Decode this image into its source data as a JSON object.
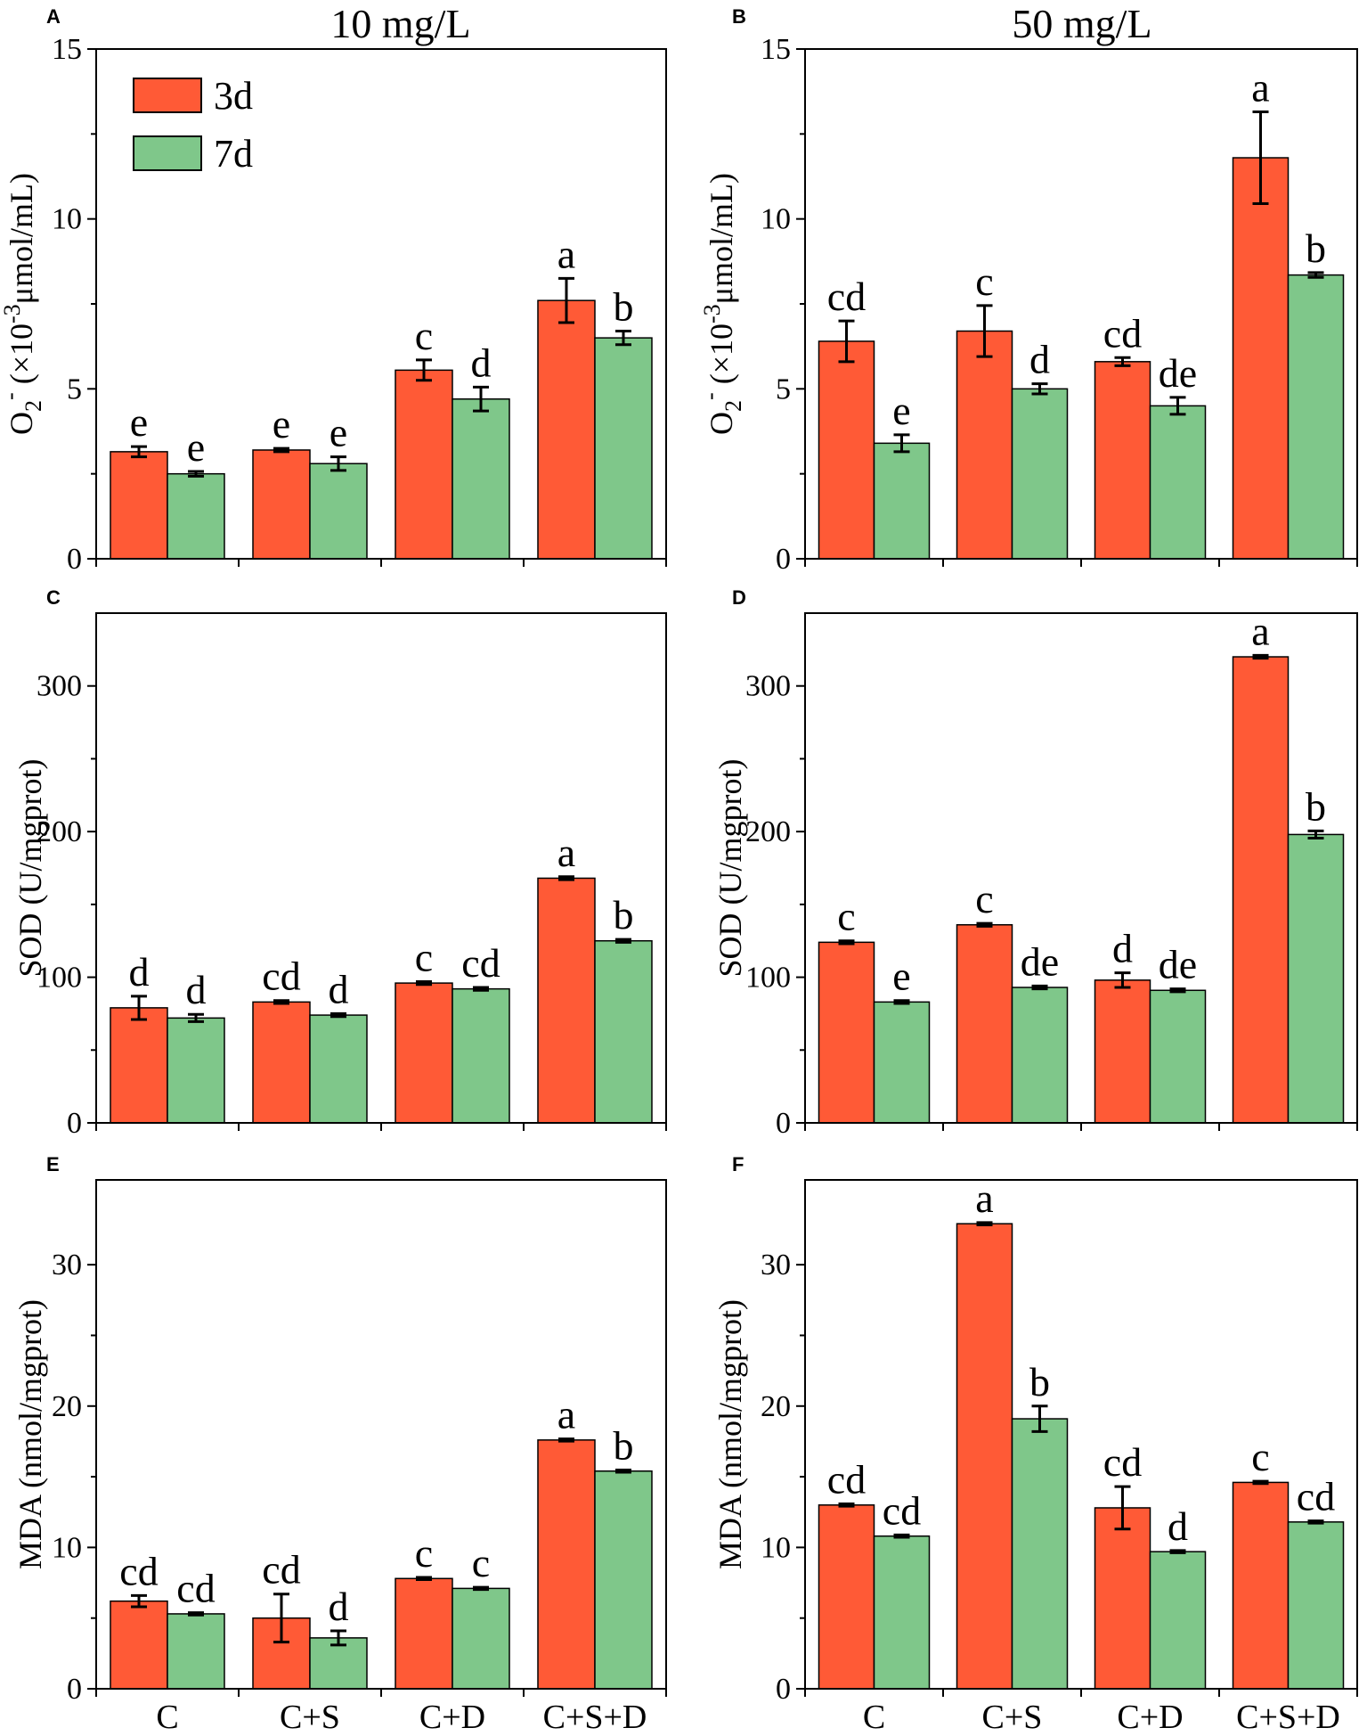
{
  "colors": {
    "d3": "#FF5A36",
    "d7": "#7FC78A",
    "axis": "#000000"
  },
  "column_titles": [
    "10 mg/L",
    "50 mg/L"
  ],
  "legend": [
    {
      "label": "3d",
      "color_key": "d3"
    },
    {
      "label": "7d",
      "color_key": "d7"
    }
  ],
  "chart_data": [
    {
      "id": "A",
      "panel_label": "A",
      "type": "bar",
      "title": "10 mg/L",
      "ylabel": "O₂⁻ (×10⁻³μmol/mL)",
      "ylabel_parts": [
        "O",
        "2",
        "-",
        " (×10",
        "-3",
        "μmol/mL)"
      ],
      "ylim": [
        0,
        15
      ],
      "yticks": [
        "0",
        "5",
        "10",
        "15"
      ],
      "categories": [
        "C",
        "C+S",
        "C+D",
        "C+S+D"
      ],
      "show_xticklabels": false,
      "series": [
        {
          "name": "3d",
          "values": [
            3.15,
            3.2,
            5.55,
            7.6
          ],
          "errors": [
            0.15,
            0.05,
            0.3,
            0.65
          ],
          "letters": [
            "e",
            "e",
            "c",
            "a"
          ]
        },
        {
          "name": "7d",
          "values": [
            2.5,
            2.8,
            4.7,
            6.5
          ],
          "errors": [
            0.07,
            0.2,
            0.35,
            0.2
          ],
          "letters": [
            "e",
            "e",
            "d",
            "b"
          ]
        }
      ]
    },
    {
      "id": "B",
      "panel_label": "B",
      "type": "bar",
      "title": "50 mg/L",
      "ylabel": "O₂⁻ (×10⁻³μmol/mL)",
      "ylabel_parts": [
        "O",
        "2",
        "-",
        " (×10",
        "-3",
        "μmol/mL)"
      ],
      "ylim": [
        0,
        15
      ],
      "yticks": [
        "0",
        "5",
        "10",
        "15"
      ],
      "categories": [
        "C",
        "C+S",
        "C+D",
        "C+S+D"
      ],
      "show_xticklabels": false,
      "series": [
        {
          "name": "3d",
          "values": [
            6.4,
            6.7,
            5.8,
            11.8
          ],
          "errors": [
            0.6,
            0.75,
            0.12,
            1.35
          ],
          "letters": [
            "cd",
            "c",
            "cd",
            "a"
          ]
        },
        {
          "name": "7d",
          "values": [
            3.4,
            5.0,
            4.5,
            8.35
          ],
          "errors": [
            0.25,
            0.15,
            0.25,
            0.07
          ],
          "letters": [
            "e",
            "d",
            "de",
            "b"
          ]
        }
      ]
    },
    {
      "id": "C",
      "panel_label": "C",
      "type": "bar",
      "ylabel": "SOD (U/mgprot)",
      "ylabel_parts": [
        "SOD (U/mgprot)"
      ],
      "ylim": [
        0,
        350
      ],
      "yticks": [
        "0",
        "100",
        "200",
        "300"
      ],
      "categories": [
        "C",
        "C+S",
        "C+D",
        "C+S+D"
      ],
      "show_xticklabels": false,
      "series": [
        {
          "name": "3d",
          "values": [
            79,
            83,
            96,
            168
          ],
          "errors": [
            8,
            1,
            1,
            1
          ],
          "letters": [
            "d",
            "cd",
            "c",
            "a"
          ]
        },
        {
          "name": "7d",
          "values": [
            72,
            74,
            92,
            125
          ],
          "errors": [
            2.5,
            1,
            1,
            1
          ],
          "letters": [
            "d",
            "d",
            "cd",
            "b"
          ]
        }
      ]
    },
    {
      "id": "D",
      "panel_label": "D",
      "type": "bar",
      "ylabel": "SOD (U/mgprot)",
      "ylabel_parts": [
        "SOD (U/mgprot)"
      ],
      "ylim": [
        0,
        350
      ],
      "yticks": [
        "0",
        "100",
        "200",
        "300"
      ],
      "categories": [
        "C",
        "C+S",
        "C+D",
        "C+S+D"
      ],
      "show_xticklabels": false,
      "series": [
        {
          "name": "3d",
          "values": [
            124,
            136,
            98,
            320
          ],
          "errors": [
            1,
            1,
            5,
            1
          ],
          "letters": [
            "c",
            "c",
            "d",
            "a"
          ]
        },
        {
          "name": "7d",
          "values": [
            83,
            93,
            91,
            198
          ],
          "errors": [
            1,
            1,
            1,
            2.5
          ],
          "letters": [
            "e",
            "de",
            "de",
            "b"
          ]
        }
      ]
    },
    {
      "id": "E",
      "panel_label": "E",
      "type": "bar",
      "ylabel": "MDA (nmol/mgprot)",
      "ylabel_parts": [
        "MDA (nmol/mgprot)"
      ],
      "ylim": [
        0,
        36
      ],
      "yticks": [
        "0",
        "10",
        "20",
        "30"
      ],
      "categories": [
        "C",
        "C+S",
        "C+D",
        "C+S+D"
      ],
      "show_xticklabels": true,
      "series": [
        {
          "name": "3d",
          "values": [
            6.2,
            5.0,
            7.8,
            17.6
          ],
          "errors": [
            0.4,
            1.7,
            0.08,
            0.08
          ],
          "letters": [
            "cd",
            "cd",
            "c",
            "a"
          ]
        },
        {
          "name": "7d",
          "values": [
            5.3,
            3.6,
            7.1,
            15.4
          ],
          "errors": [
            0.08,
            0.5,
            0.08,
            0.08
          ],
          "letters": [
            "cd",
            "d",
            "c",
            "b"
          ]
        }
      ]
    },
    {
      "id": "F",
      "panel_label": "F",
      "type": "bar",
      "ylabel": "MDA (nmol/mgprot)",
      "ylabel_parts": [
        "MDA (nmol/mgprot)"
      ],
      "ylim": [
        0,
        36
      ],
      "yticks": [
        "0",
        "10",
        "20",
        "30"
      ],
      "categories": [
        "C",
        "C+S",
        "C+D",
        "C+S+D"
      ],
      "show_xticklabels": true,
      "series": [
        {
          "name": "3d",
          "values": [
            13.0,
            32.9,
            12.8,
            14.6
          ],
          "errors": [
            0.08,
            0.08,
            1.5,
            0.08
          ],
          "letters": [
            "cd",
            "a",
            "cd",
            "c"
          ]
        },
        {
          "name": "7d",
          "values": [
            10.8,
            19.1,
            9.7,
            11.8
          ],
          "errors": [
            0.08,
            0.9,
            0.08,
            0.08
          ],
          "letters": [
            "cd",
            "b",
            "d",
            "cd"
          ]
        }
      ]
    }
  ]
}
